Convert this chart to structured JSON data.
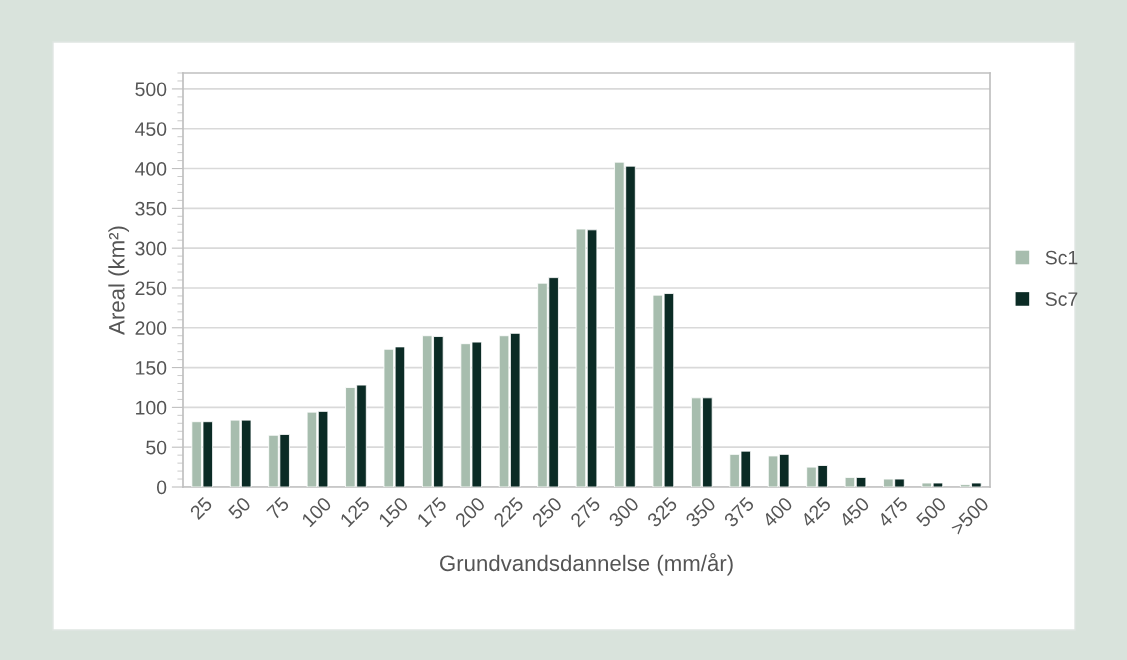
{
  "chart_data": {
    "type": "bar",
    "xlabel": "Grundvandsdannelse (mm/år)",
    "ylabel": "Areal (km²)",
    "categories": [
      "25",
      "50",
      "75",
      "100",
      "125",
      "150",
      "175",
      "200",
      "225",
      "250",
      "275",
      "300",
      "325",
      "350",
      "375",
      "400",
      "425",
      "450",
      "475",
      "500",
      ">500"
    ],
    "series": [
      {
        "name": "Sc1",
        "color": "#a7bdae",
        "values": [
          82,
          84,
          65,
          94,
          125,
          173,
          190,
          180,
          190,
          256,
          324,
          408,
          241,
          112,
          41,
          39,
          25,
          12,
          10,
          5,
          3
        ]
      },
      {
        "name": "Sc7",
        "color": "#0b2b25",
        "values": [
          82,
          84,
          66,
          95,
          128,
          176,
          189,
          182,
          193,
          263,
          323,
          403,
          243,
          112,
          45,
          41,
          27,
          12,
          10,
          5,
          5
        ]
      }
    ],
    "ylim": [
      0,
      520
    ],
    "yticks": [
      0,
      50,
      100,
      150,
      200,
      250,
      300,
      350,
      400,
      450,
      500
    ],
    "grid": "y",
    "legend": "right"
  }
}
